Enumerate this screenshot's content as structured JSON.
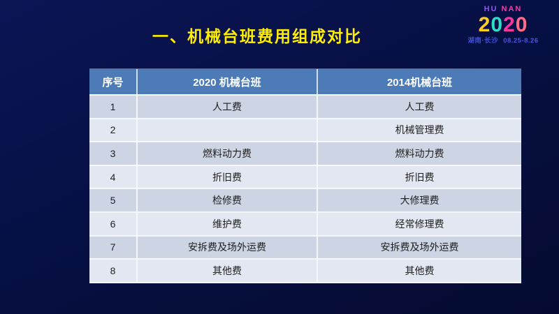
{
  "slide": {
    "title": "一、机械台班费用组成对比"
  },
  "logo": {
    "region_hu": "HU",
    "region_nan": "NAN",
    "year_digits": [
      "2",
      "0",
      "2",
      "0"
    ],
    "location": "湖南·长沙",
    "dates": "08.25-8.26"
  },
  "table": {
    "headers": {
      "index": "序号",
      "col2020": "2020 机械台班",
      "col2014": "2014机械台班"
    },
    "rows": [
      {
        "no": "1",
        "col2020": "人工费",
        "col2014": "人工费"
      },
      {
        "no": "2",
        "col2020": "",
        "col2014": "机械管理费"
      },
      {
        "no": "3",
        "col2020": "燃料动力费",
        "col2014": "燃料动力费"
      },
      {
        "no": "4",
        "col2020": "折旧费",
        "col2014": "折旧费"
      },
      {
        "no": "5",
        "col2020": "检修费",
        "col2014": "大修理费"
      },
      {
        "no": "6",
        "col2020": "维护费",
        "col2014": "经常修理费"
      },
      {
        "no": "7",
        "col2020": "安拆费及场外运费",
        "col2014": "安拆费及场外运费"
      },
      {
        "no": "8",
        "col2020": "其他费",
        "col2014": "其他费"
      }
    ]
  },
  "colors": {
    "background_top": "#0b1555",
    "background_bottom": "#050b30",
    "title_yellow": "#ffee00",
    "header_blue": "#4c7bb8",
    "row_dark": "#cdd4e3",
    "row_light": "#e3e7f1",
    "divider_white": "#f5f7fa",
    "logo_hu_violet": "#8f55f0",
    "logo_nan_magenta": "#ff37a2",
    "digit_yellow": "#ffcc26",
    "digit_teal": "#2edfc4",
    "digit_pink": "#f5369b",
    "digit_rose": "#ff6d85",
    "location_blue": "#3c50d8",
    "dates_blue": "#4b55e6"
  }
}
